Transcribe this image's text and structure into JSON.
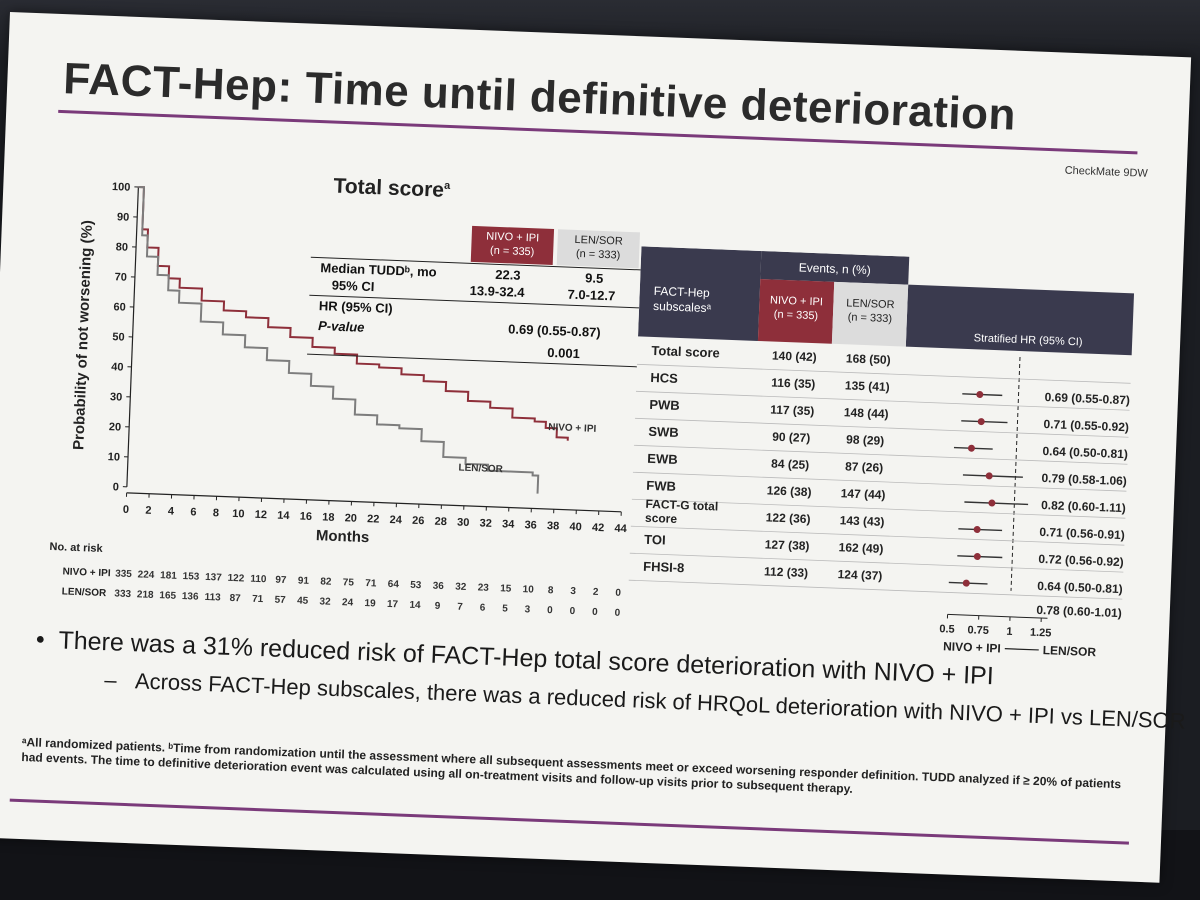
{
  "slide": {
    "title": "FACT-Hep: Time until definitive deterioration",
    "brand": "CheckMate 9DW",
    "bullet_1": "There was a 31% reduced risk of FACT-Hep total score deterioration with NIVO + IPI",
    "bullet_2": "Across FACT-Hep subscales, there was a reduced risk of HRQoL deterioration with NIVO + IPI vs LEN/SOR",
    "footnote": "ᵃAll randomized patients. ᵇTime from randomization until the assessment where all subsequent assessments meet or exceed worsening responder definition. TUDD analyzed if ≥ 20% of patients had events. The time to definitive deterioration event was calculated using all on-treatment visits and follow-up visits prior to subsequent therapy."
  },
  "km": {
    "title": "Total score",
    "title_sup": "a",
    "arm1_header_1": "NIVO + IPI",
    "arm1_header_2": "(n = 335)",
    "arm2_header_1": "LEN/SOR",
    "arm2_header_2": "(n = 333)",
    "median_label": "Median TUDDᵇ, mo",
    "median_arm1": "22.3",
    "median_arm2": "9.5",
    "ci_label": "95% CI",
    "ci_arm1": "13.9-32.4",
    "ci_arm2": "7.0-12.7",
    "hr_label": "HR (95% CI)",
    "hr_value": "0.69 (0.55-0.87)",
    "p_label": "P-value",
    "p_value": "0.001",
    "risk_title": "No. at risk",
    "risk_arm1_label": "NIVO + IPI",
    "risk_arm2_label": "LEN/SOR",
    "risk_arm1": [
      "335",
      "224",
      "181",
      "153",
      "137",
      "122",
      "110",
      "97",
      "91",
      "82",
      "75",
      "71",
      "64",
      "53",
      "36",
      "32",
      "23",
      "15",
      "10",
      "8",
      "3",
      "2",
      "0"
    ],
    "risk_arm2": [
      "333",
      "218",
      "165",
      "136",
      "113",
      "87",
      "71",
      "57",
      "45",
      "32",
      "24",
      "19",
      "17",
      "14",
      "9",
      "7",
      "6",
      "5",
      "3",
      "0",
      "0",
      "0",
      "0"
    ]
  },
  "forest": {
    "col_subscale_1": "FACT-Hep",
    "col_subscale_2": "subscalesᵃ",
    "events_header": "Events, n (%)",
    "arm1_header_1": "NIVO + IPI",
    "arm1_header_2": "(n = 335)",
    "arm2_header_1": "LEN/SOR",
    "arm2_header_2": "(n = 333)",
    "hr_header": "Stratified HR (95% CI)",
    "axis_ticks": [
      "0.5",
      "0.75",
      "1",
      "1.25"
    ],
    "favors_left": "NIVO + IPI",
    "favors_right": "LEN/SOR",
    "rows": [
      {
        "name": "Total score",
        "arm1": "140 (42)",
        "arm2": "168 (50)",
        "hr_text": "",
        "hr": null,
        "lo": null,
        "hi": null
      },
      {
        "name": "HCS",
        "arm1": "116 (35)",
        "arm2": "135 (41)",
        "hr_text": "0.69 (0.55-0.87)",
        "hr": 0.69,
        "lo": 0.55,
        "hi": 0.87
      },
      {
        "name": "PWB",
        "arm1": "117 (35)",
        "arm2": "148 (44)",
        "hr_text": "0.71 (0.55-0.92)",
        "hr": 0.71,
        "lo": 0.55,
        "hi": 0.92
      },
      {
        "name": "SWB",
        "arm1": "90 (27)",
        "arm2": "98 (29)",
        "hr_text": "0.64 (0.50-0.81)",
        "hr": 0.64,
        "lo": 0.5,
        "hi": 0.81
      },
      {
        "name": "EWB",
        "arm1": "84 (25)",
        "arm2": "87 (26)",
        "hr_text": "0.79 (0.58-1.06)",
        "hr": 0.79,
        "lo": 0.58,
        "hi": 1.06
      },
      {
        "name": "FWB",
        "arm1": "126 (38)",
        "arm2": "147 (44)",
        "hr_text": "0.82 (0.60-1.11)",
        "hr": 0.82,
        "lo": 0.6,
        "hi": 1.11
      },
      {
        "name": "FACT-G total score",
        "arm1": "122 (36)",
        "arm2": "143 (43)",
        "hr_text": "0.71 (0.56-0.91)",
        "hr": 0.71,
        "lo": 0.56,
        "hi": 0.91
      },
      {
        "name": "TOI",
        "arm1": "127 (38)",
        "arm2": "162 (49)",
        "hr_text": "0.72 (0.56-0.92)",
        "hr": 0.72,
        "lo": 0.56,
        "hi": 0.92
      },
      {
        "name": "FHSI-8",
        "arm1": "112 (33)",
        "arm2": "124 (37)",
        "hr_text": "0.64 (0.50-0.81)",
        "hr": 0.64,
        "lo": 0.5,
        "hi": 0.81
      }
    ],
    "note_last_row_hr": "0.78 (0.60-1.01)"
  },
  "colors": {
    "arm1": "#8e2f3a",
    "arm2": "#7d7d7d",
    "header_dark": "#3a3a4e",
    "accent_rule": "#7a3a7a"
  },
  "chart_data": [
    {
      "type": "line",
      "title": "Total score",
      "xlabel": "Months",
      "ylabel": "Probability of not worsening (%)",
      "xlim": [
        0,
        44
      ],
      "ylim": [
        0,
        100
      ],
      "xticks": [
        0,
        2,
        4,
        6,
        8,
        10,
        12,
        14,
        16,
        18,
        20,
        22,
        24,
        26,
        28,
        30,
        32,
        34,
        36,
        38,
        40,
        42,
        44
      ],
      "yticks": [
        0,
        10,
        20,
        30,
        40,
        50,
        60,
        70,
        80,
        90,
        100
      ],
      "series": [
        {
          "name": "NIVO + IPI",
          "x": [
            0,
            0.5,
            1,
            2,
            3,
            4,
            6,
            8,
            10,
            12,
            14,
            16,
            18,
            20,
            22,
            24,
            26,
            28,
            30,
            32,
            34,
            36,
            37,
            38,
            39
          ],
          "y": [
            100,
            86,
            80,
            74,
            70,
            67,
            63,
            60,
            58,
            55,
            52,
            49,
            47,
            44,
            43,
            41,
            39,
            36,
            33,
            31,
            28,
            27,
            25,
            22,
            21
          ]
        },
        {
          "name": "LEN/SOR",
          "x": [
            0,
            0.5,
            1,
            2,
            3,
            4,
            6,
            8,
            10,
            12,
            14,
            16,
            18,
            20,
            22,
            24,
            26,
            28,
            30,
            32,
            34,
            35,
            36,
            36.5
          ],
          "y": [
            100,
            84,
            77,
            71,
            66,
            62,
            56,
            52,
            48,
            44,
            40,
            36,
            32,
            27,
            24,
            23,
            19,
            14,
            12,
            10,
            10,
            10,
            9,
            3
          ]
        }
      ]
    },
    {
      "type": "scatter",
      "title": "Stratified HR (95% CI)",
      "xlim": [
        0.5,
        1.3
      ],
      "xticks": [
        0.5,
        0.75,
        1,
        1.25
      ],
      "categories": [
        "HCS",
        "PWB",
        "SWB",
        "EWB",
        "FWB",
        "FACT-G total score",
        "TOI",
        "FHSI-8"
      ],
      "values": [
        0.69,
        0.71,
        0.64,
        0.79,
        0.82,
        0.71,
        0.72,
        0.64
      ],
      "lower": [
        0.55,
        0.55,
        0.5,
        0.58,
        0.6,
        0.56,
        0.56,
        0.5
      ],
      "upper": [
        0.87,
        0.92,
        0.81,
        1.06,
        1.11,
        0.91,
        0.92,
        0.81
      ]
    }
  ]
}
